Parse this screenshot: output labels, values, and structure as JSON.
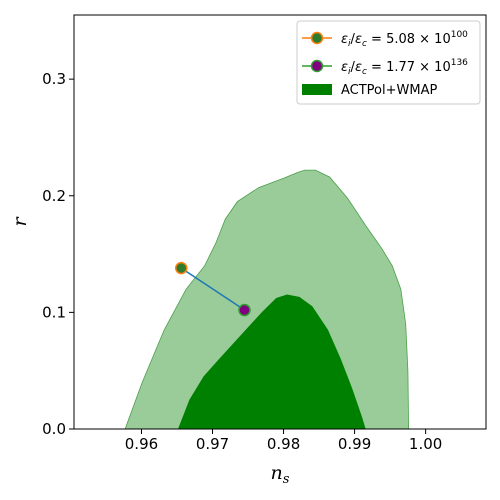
{
  "chart_data": {
    "type": "line",
    "title": "",
    "xlabel": "n",
    "xlabel_sub": "s",
    "ylabel": "r",
    "xlim": [
      0.9505,
      1.0085
    ],
    "ylim": [
      0.0,
      0.355
    ],
    "x_ticks": [
      0.96,
      0.97,
      0.98,
      0.99,
      1.0
    ],
    "x_tick_labels": [
      "0.96",
      "0.97",
      "0.98",
      "0.99",
      "1.00"
    ],
    "y_ticks": [
      0.0,
      0.1,
      0.2,
      0.3
    ],
    "y_tick_labels": [
      "0.0",
      "0.1",
      "0.2",
      "0.3"
    ],
    "grid": false,
    "legend_position": "top-right",
    "colors": {
      "contour_outer": "#99cc99",
      "contour_inner": "#008000",
      "contour_edge": "#4c9f4c",
      "connector": "#1f77b4",
      "marker1_edge": "#ff7f0e",
      "marker2_edge": "#2ca02c",
      "marker1_face": "#2e7d2e",
      "marker2_face": "#800080"
    },
    "contours": {
      "label": "ACTPol+WMAP",
      "outer": [
        [
          0.9577,
          0.0
        ],
        [
          0.9601,
          0.04
        ],
        [
          0.9632,
          0.085
        ],
        [
          0.9663,
          0.12
        ],
        [
          0.9689,
          0.14
        ],
        [
          0.9705,
          0.16
        ],
        [
          0.9718,
          0.18
        ],
        [
          0.9735,
          0.195
        ],
        [
          0.9765,
          0.207
        ],
        [
          0.98,
          0.215
        ],
        [
          0.982,
          0.22
        ],
        [
          0.983,
          0.222
        ],
        [
          0.9845,
          0.222
        ],
        [
          0.9865,
          0.216
        ],
        [
          0.989,
          0.198
        ],
        [
          0.9915,
          0.175
        ],
        [
          0.9938,
          0.155
        ],
        [
          0.9953,
          0.14
        ],
        [
          0.9965,
          0.12
        ],
        [
          0.9972,
          0.09
        ],
        [
          0.9975,
          0.05
        ],
        [
          0.9976,
          0.0
        ]
      ],
      "inner": [
        [
          0.9652,
          0.0
        ],
        [
          0.9668,
          0.025
        ],
        [
          0.9688,
          0.045
        ],
        [
          0.971,
          0.06
        ],
        [
          0.974,
          0.08
        ],
        [
          0.977,
          0.1
        ],
        [
          0.979,
          0.112
        ],
        [
          0.9805,
          0.115
        ],
        [
          0.9822,
          0.113
        ],
        [
          0.984,
          0.105
        ],
        [
          0.9862,
          0.085
        ],
        [
          0.988,
          0.06
        ],
        [
          0.9896,
          0.035
        ],
        [
          0.991,
          0.01
        ],
        [
          0.9915,
          0.0
        ]
      ]
    },
    "series": [
      {
        "name": "ε_i/ε_c = 5.08 × 10^100",
        "label_parts": {
          "eps_i": "ε",
          "sub_i": "i",
          "slash": "/",
          "eps_c": "ε",
          "sub_c": "c",
          "eq": " = 5.08 × 10",
          "exp": "100"
        },
        "x": [
          0.9656
        ],
        "y": [
          0.138
        ]
      },
      {
        "name": "ε_i/ε_c = 1.77 × 10^136",
        "label_parts": {
          "eps_i": "ε",
          "sub_i": "i",
          "slash": "/",
          "eps_c": "ε",
          "sub_c": "c",
          "eq": " = 1.77 × 10",
          "exp": "136"
        },
        "x": [
          0.9745
        ],
        "y": [
          0.102
        ]
      }
    ],
    "connector_line": {
      "x": [
        0.9656,
        0.9745
      ],
      "y": [
        0.138,
        0.102
      ]
    }
  }
}
